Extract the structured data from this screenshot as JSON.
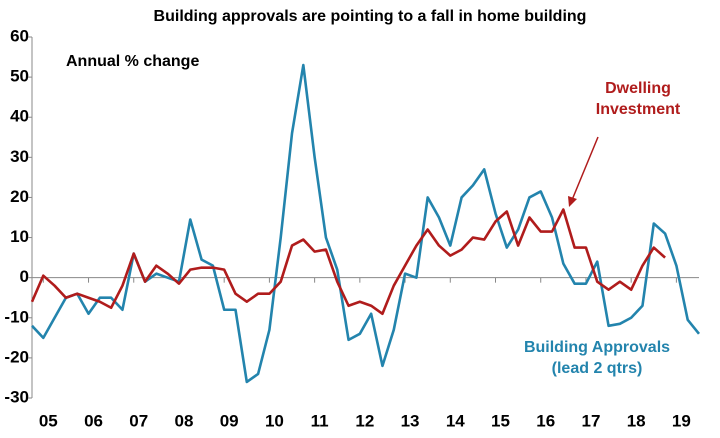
{
  "chart_data": {
    "type": "line",
    "title": "Building approvals are pointing to a fall in home building",
    "y_label": "Annual % change",
    "xlim": [
      2004.75,
      2019.5
    ],
    "xticks": [
      {
        "value": 2005,
        "label": "05"
      },
      {
        "value": 2006,
        "label": "06"
      },
      {
        "value": 2007,
        "label": "07"
      },
      {
        "value": 2008,
        "label": "08"
      },
      {
        "value": 2009,
        "label": "09"
      },
      {
        "value": 2010,
        "label": "10"
      },
      {
        "value": 2011,
        "label": "11"
      },
      {
        "value": 2012,
        "label": "12"
      },
      {
        "value": 2013,
        "label": "13"
      },
      {
        "value": 2014,
        "label": "14"
      },
      {
        "value": 2015,
        "label": "15"
      },
      {
        "value": 2016,
        "label": "16"
      },
      {
        "value": 2017,
        "label": "17"
      },
      {
        "value": 2018,
        "label": "18"
      },
      {
        "value": 2019,
        "label": "19"
      }
    ],
    "ylim": [
      -30,
      60
    ],
    "yticks": [
      -30,
      -20,
      -10,
      0,
      10,
      20,
      30,
      40,
      50,
      60
    ],
    "grid": false,
    "series": [
      {
        "name": "Building Approvals (lead 2 qtrs)",
        "color": "#2384ad",
        "start": 2004.75,
        "step": 0.25,
        "values": [
          -12,
          -15,
          -10,
          -5,
          -4,
          -9,
          -5,
          -5,
          -8,
          6,
          -1,
          1,
          0,
          -1,
          14.5,
          4.5,
          3,
          -8,
          -8,
          -26,
          -24,
          -13,
          10,
          36,
          53,
          30,
          10,
          2,
          -15.5,
          -14,
          -9,
          -22,
          -13,
          1,
          0,
          20,
          15,
          8,
          20,
          23,
          27,
          16,
          7.5,
          12,
          20,
          21.5,
          15,
          3.5,
          -1.5,
          -1.5,
          4,
          -12,
          -11.5,
          -10,
          -7,
          13.5,
          11,
          3,
          -10.5,
          -14
        ]
      },
      {
        "name": "Dwelling Investment",
        "color": "#b01c1c",
        "start": 2004.75,
        "step": 0.25,
        "values": [
          -6,
          0.5,
          -2,
          -5,
          -4,
          -5,
          -6,
          -7.5,
          -2,
          6,
          -1,
          3,
          1,
          -1.5,
          2,
          2.5,
          2.5,
          2,
          -4,
          -6,
          -4,
          -4,
          -1,
          8,
          9.5,
          6.5,
          7,
          -1,
          -7,
          -6,
          -7,
          -9,
          -2,
          3,
          8,
          12,
          8,
          5.5,
          7,
          10,
          9.5,
          14,
          16.5,
          8,
          15,
          11.5,
          11.5,
          17,
          7.5,
          7.5,
          -1,
          -3,
          -1,
          -3,
          3,
          7.5,
          5
        ]
      }
    ]
  }
}
